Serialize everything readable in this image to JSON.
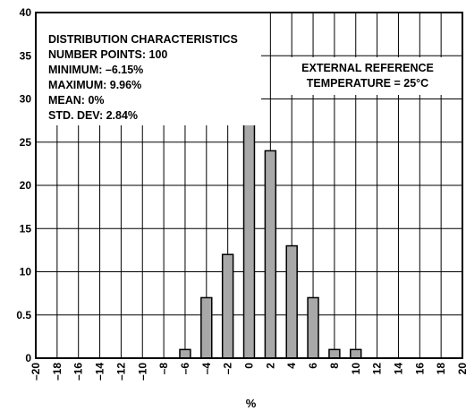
{
  "chart_data": {
    "type": "bar",
    "title": "",
    "xlabel": "%",
    "ylabel": "",
    "xlim": [
      -20,
      20
    ],
    "ylim": [
      0,
      40
    ],
    "x_ticks": [
      "–20",
      "–18",
      "–16",
      "–14",
      "–12",
      "–10",
      "–8",
      "–6",
      "–4",
      "–2",
      "0",
      "2",
      "4",
      "6",
      "8",
      "10",
      "12",
      "14",
      "16",
      "18",
      "20"
    ],
    "y_ticks": [
      "0",
      "0.5",
      "10",
      "15",
      "20",
      "25",
      "30",
      "35",
      "40"
    ],
    "x": [
      -6,
      -4,
      -2,
      0,
      2,
      4,
      6,
      8,
      10
    ],
    "values": [
      1,
      7,
      12,
      34,
      24,
      13,
      7,
      1,
      1
    ],
    "grid": true,
    "bar_color": "#a8a8a8",
    "annotations": {
      "distribution": [
        "DISTRIBUTION CHARACTERISTICS",
        "NUMBER POINTS: 100",
        "MINIMUM: –6.15%",
        "MAXIMUM: 9.96%",
        "MEAN: 0%",
        "STD. DEV: 2.84%"
      ],
      "reference": [
        "EXTERNAL REFERENCE",
        "TEMPERATURE = 25°C"
      ]
    }
  }
}
